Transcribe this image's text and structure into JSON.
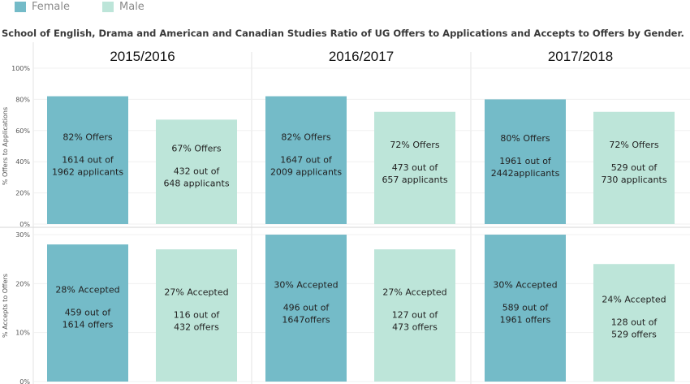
{
  "legend": {
    "female": {
      "label": "Female",
      "color": "#74bbc8"
    },
    "male": {
      "label": "Male",
      "color": "#bde5d9"
    }
  },
  "title": "School of English, Drama and American and Canadian Studies Ratio of UG Offers to Applications and Accepts to Offers by Gender.",
  "chart_data": {
    "type": "bar",
    "columns": [
      "2015/2016",
      "2016/2017",
      "2017/2018"
    ],
    "series_names": [
      "Female",
      "Male"
    ],
    "rows": [
      {
        "ylabel": "% Offers to Applications",
        "ylim": [
          0,
          100
        ],
        "ticks": [
          {
            "v": 0,
            "t": "0%"
          },
          {
            "v": 20,
            "t": "20%"
          },
          {
            "v": 40,
            "t": "40%"
          },
          {
            "v": 60,
            "t": "60%"
          },
          {
            "v": 80,
            "t": "80%"
          },
          {
            "v": 100,
            "t": "100%"
          }
        ],
        "bars": [
          [
            {
              "value": 82,
              "lines": [
                "82% Offers",
                "1614 out of",
                "1962 applicants"
              ]
            },
            {
              "value": 67,
              "lines": [
                "67% Offers",
                "432 out of",
                "648 applicants"
              ]
            }
          ],
          [
            {
              "value": 82,
              "lines": [
                "82% Offers",
                "1647 out of",
                "2009 applicants"
              ]
            },
            {
              "value": 72,
              "lines": [
                "72% Offers",
                "473 out of",
                "657 applicants"
              ]
            }
          ],
          [
            {
              "value": 80,
              "lines": [
                "80% Offers",
                "1961 out of",
                "2442applicants"
              ]
            },
            {
              "value": 72,
              "lines": [
                "72% Offers",
                "529 out of",
                "730 applicants"
              ]
            }
          ]
        ]
      },
      {
        "ylabel": "% Accepts to Offers",
        "ylim": [
          0,
          31
        ],
        "ticks": [
          {
            "v": 0,
            "t": "0%"
          },
          {
            "v": 10,
            "t": "10%"
          },
          {
            "v": 20,
            "t": "20%"
          },
          {
            "v": 30,
            "t": "30%"
          }
        ],
        "bars": [
          [
            {
              "value": 28,
              "lines": [
                "28% Accepted",
                "459 out of",
                "1614 offers"
              ]
            },
            {
              "value": 27,
              "lines": [
                "27% Accepted",
                "116 out of",
                "432 offers"
              ]
            }
          ],
          [
            {
              "value": 30,
              "lines": [
                "30% Accepted",
                "496 out of",
                "1647offers"
              ]
            },
            {
              "value": 27,
              "lines": [
                "27% Accepted",
                "127 out of",
                "473 offers"
              ]
            }
          ],
          [
            {
              "value": 30,
              "lines": [
                "30% Accepted",
                "589 out of",
                "1961 offers"
              ]
            },
            {
              "value": 24,
              "lines": [
                "24% Accepted",
                "128 out of",
                "529 offers"
              ]
            }
          ]
        ]
      }
    ]
  }
}
